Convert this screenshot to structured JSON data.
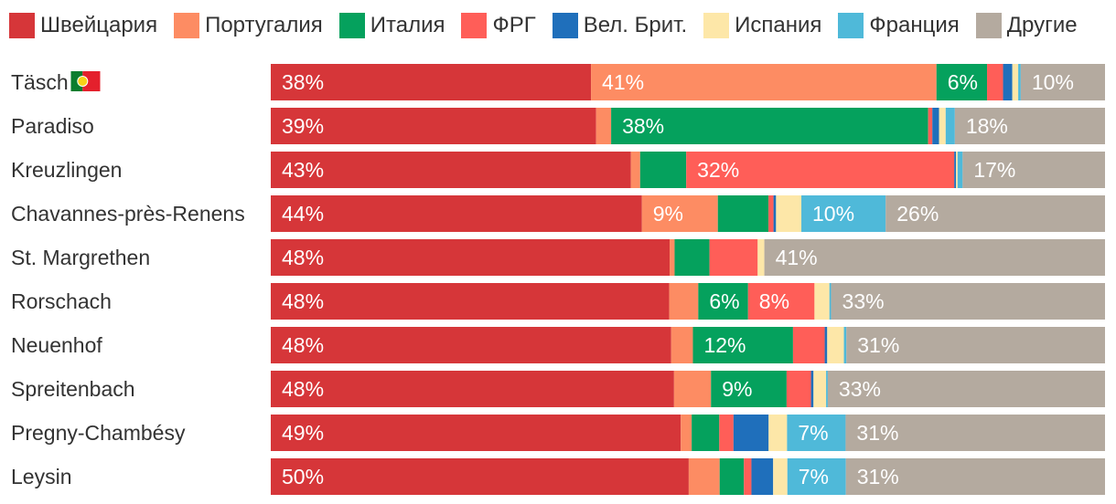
{
  "chart_data": {
    "type": "bar",
    "orientation": "horizontal",
    "stacked": true,
    "legend_position": "top",
    "series": [
      {
        "name": "Швейцария",
        "color": "#d63639",
        "values": [
          38,
          39,
          43,
          44,
          48,
          48,
          48,
          48,
          49,
          50
        ]
      },
      {
        "name": "Португалия",
        "color": "#fd8c63",
        "values": [
          41,
          1.8,
          1.1,
          9,
          0.6,
          3.5,
          2.6,
          4.4,
          1.3,
          3.7
        ]
      },
      {
        "name": "Италия",
        "color": "#05a15d",
        "values": [
          6,
          38,
          5.5,
          6,
          4.2,
          6,
          12,
          9,
          3.3,
          2.9
        ]
      },
      {
        "name": "ФРГ",
        "color": "#ff5e58",
        "values": [
          1.9,
          0.5,
          32,
          0.6,
          5.8,
          8,
          3.8,
          2.9,
          1.7,
          0.9
        ]
      },
      {
        "name": "Вел. Брит.",
        "color": "#1f6fbb",
        "values": [
          1.1,
          0.8,
          0.2,
          0.3,
          0,
          0,
          0.3,
          0.3,
          4.2,
          2.6
        ]
      },
      {
        "name": "Испания",
        "color": "#fde7a8",
        "values": [
          0.7,
          0.8,
          0.2,
          3,
          0.8,
          1.8,
          2.0,
          1.5,
          2.2,
          1.7
        ]
      },
      {
        "name": "Франция",
        "color": "#4fb9d9",
        "values": [
          0.3,
          1.1,
          0.6,
          10,
          0,
          0.2,
          0.3,
          0.2,
          7,
          7
        ]
      },
      {
        "name": "Другие",
        "color": "#b4aa9f",
        "values": [
          10,
          18,
          17,
          26,
          41,
          33,
          31,
          33,
          31,
          31
        ]
      }
    ],
    "categories": [
      "Täsch",
      "Paradiso",
      "Kreuzlingen",
      "Chavannes-près-Renens",
      "St. Margrethen",
      "Rorschach",
      "Neuenhof",
      "Spreitenbach",
      "Pregny-Chambésy",
      "Leysin"
    ],
    "labels": [
      [
        "38%",
        "41%",
        "6%",
        "",
        "",
        "",
        "",
        "10%"
      ],
      [
        "39%",
        "",
        "38%",
        "",
        "",
        "",
        "",
        "18%"
      ],
      [
        "43%",
        "",
        "",
        "32%",
        "",
        "",
        "",
        "17%"
      ],
      [
        "44%",
        "9%",
        "",
        "",
        "",
        "",
        "10%",
        "26%"
      ],
      [
        "48%",
        "",
        "",
        "",
        "",
        "",
        "",
        "41%"
      ],
      [
        "48%",
        "",
        "6%",
        "8%",
        "",
        "",
        "",
        "33%"
      ],
      [
        "48%",
        "",
        "12%",
        "",
        "",
        "",
        "",
        "31%"
      ],
      [
        "48%",
        "",
        "9%",
        "",
        "",
        "",
        "",
        "33%"
      ],
      [
        "49%",
        "",
        "",
        "",
        "",
        "",
        "7%",
        "31%"
      ],
      [
        "50%",
        "",
        "",
        "",
        "",
        "",
        "7%",
        "31%"
      ]
    ],
    "flag_category": "Täsch",
    "flag_name": "portugal-flag",
    "xlim": [
      0,
      100
    ],
    "title": "",
    "xlabel": "",
    "ylabel": ""
  }
}
